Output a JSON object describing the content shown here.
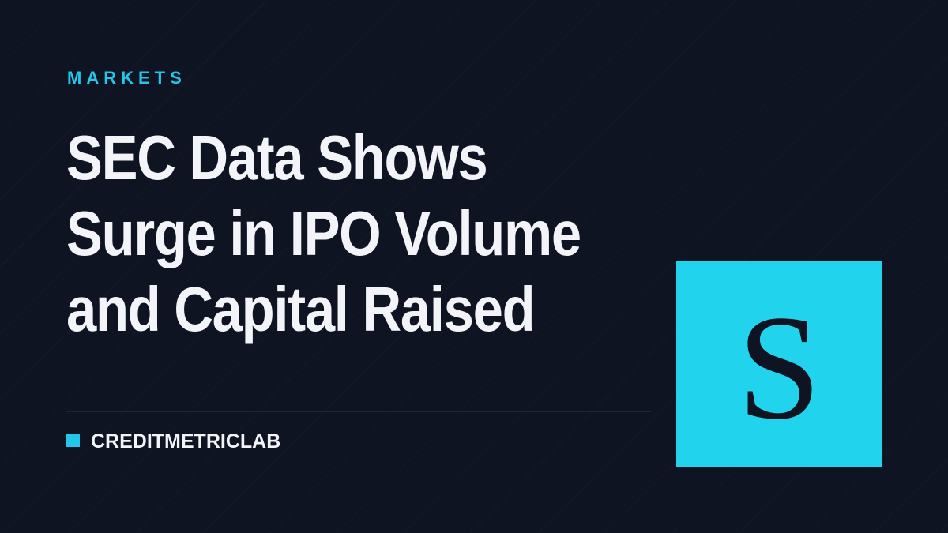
{
  "category": "MARKETS",
  "title_lines": [
    "SEC Data Shows",
    "Surge in IPO Volume",
    "and Capital Raised"
  ],
  "brand": "CREDITMETRICLAB",
  "logo_letter": "S"
}
